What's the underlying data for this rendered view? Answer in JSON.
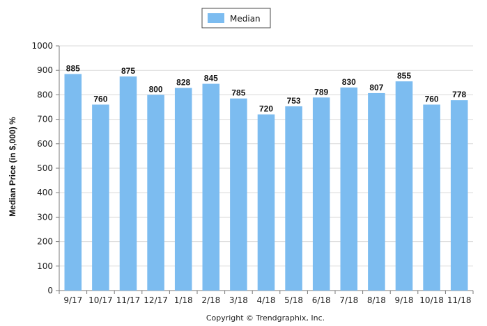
{
  "chart_data": {
    "type": "bar",
    "title": "",
    "xlabel": "",
    "ylabel": "Median Price (in $,000) %",
    "ylim": [
      0,
      1000
    ],
    "yticks": [
      0,
      100,
      200,
      300,
      400,
      500,
      600,
      700,
      800,
      900,
      1000
    ],
    "grid": true,
    "legend_position": "top-center",
    "categories": [
      "9/17",
      "10/17",
      "11/17",
      "12/17",
      "1/18",
      "2/18",
      "3/18",
      "4/18",
      "5/18",
      "6/18",
      "7/18",
      "8/18",
      "9/18",
      "10/18",
      "11/18"
    ],
    "series": [
      {
        "name": "Median",
        "color": "#7cbcf0",
        "values": [
          885,
          760,
          875,
          800,
          828,
          845,
          785,
          720,
          753,
          789,
          830,
          807,
          855,
          760,
          778
        ]
      }
    ],
    "data_labels": true
  },
  "footer": {
    "copyright": "Copyright © Trendgraphix, Inc."
  }
}
